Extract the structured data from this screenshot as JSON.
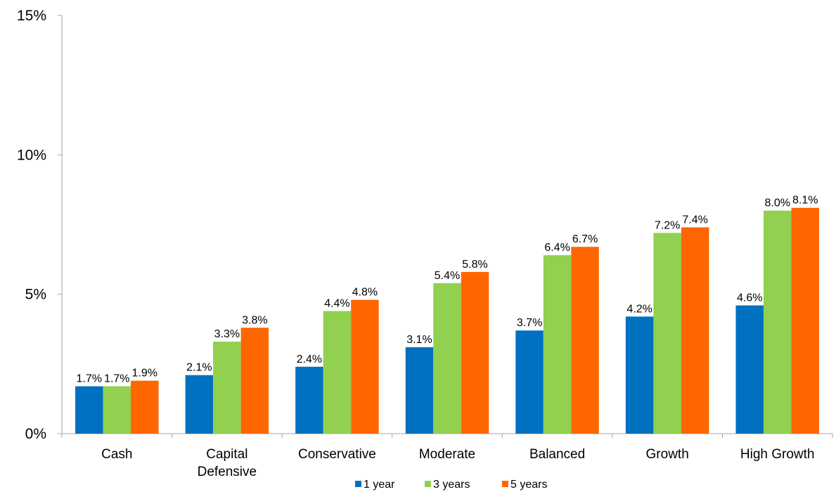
{
  "chart_data": {
    "type": "bar",
    "title": "",
    "xlabel": "",
    "ylabel": "",
    "ylim": [
      0,
      15
    ],
    "yticks": [
      0,
      5,
      10,
      15
    ],
    "ytick_labels": [
      "0%",
      "5%",
      "10%",
      "15%"
    ],
    "grid": false,
    "legend_position": "bottom",
    "categories": [
      [
        "Cash"
      ],
      [
        "Capital",
        "Defensive"
      ],
      [
        "Conservative"
      ],
      [
        "Moderate"
      ],
      [
        "Balanced"
      ],
      [
        "Growth"
      ],
      [
        "High Growth"
      ]
    ],
    "series": [
      {
        "name": "1 year",
        "color": "#0070C0",
        "values": [
          1.7,
          2.1,
          2.4,
          3.1,
          3.7,
          4.2,
          4.6
        ],
        "labels": [
          "1.7%",
          "2.1%",
          "2.4%",
          "3.1%",
          "3.7%",
          "4.2%",
          "4.6%"
        ]
      },
      {
        "name": "3 years",
        "color": "#92D050",
        "values": [
          1.7,
          3.3,
          4.4,
          5.4,
          6.4,
          7.2,
          8.0
        ],
        "labels": [
          "1.7%",
          "3.3%",
          "4.4%",
          "5.4%",
          "6.4%",
          "7.2%",
          "8.0%"
        ]
      },
      {
        "name": "5 years",
        "color": "#FF6600",
        "values": [
          1.9,
          3.8,
          4.8,
          5.8,
          6.7,
          7.4,
          8.1
        ],
        "labels": [
          "1.9%",
          "3.8%",
          "4.8%",
          "5.8%",
          "6.7%",
          "7.4%",
          "8.1%"
        ]
      }
    ]
  }
}
